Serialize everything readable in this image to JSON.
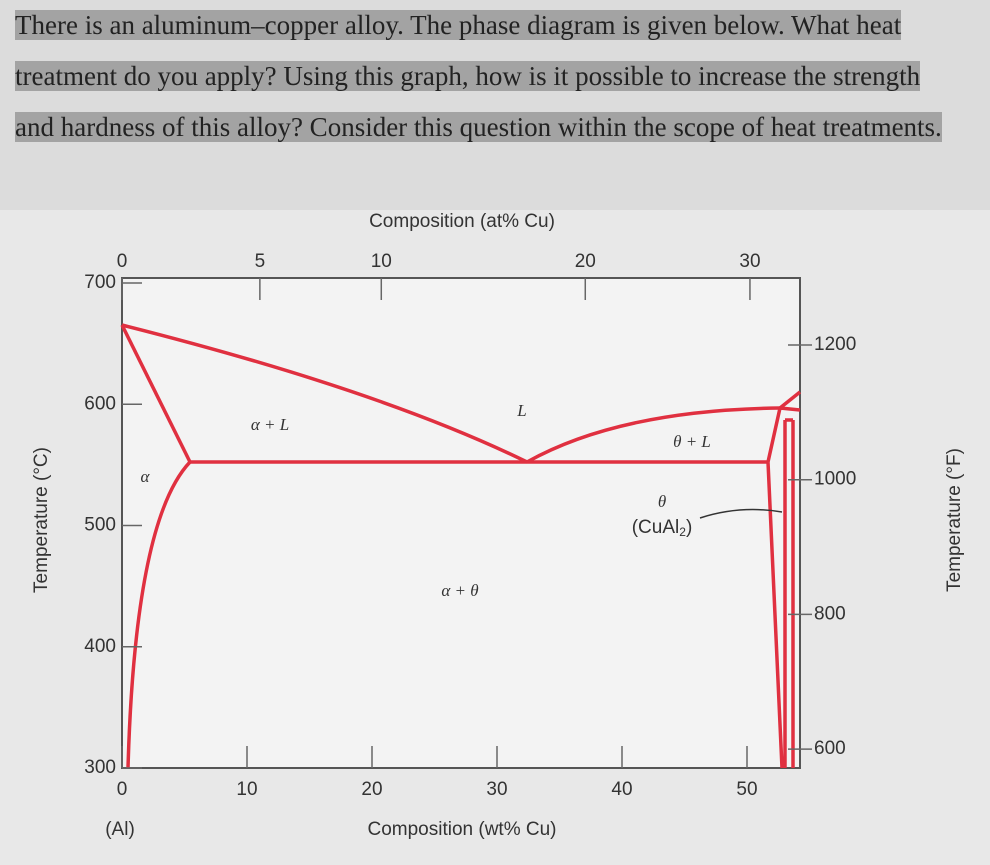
{
  "question": "There is an aluminum–copper alloy. The phase diagram is given below. What heat treatment do you apply? Using this graph, how is it possible to increase the strength and hardness of this alloy? Consider this question within the scope of heat treatments.",
  "diagram": {
    "top_axis": {
      "title": "Composition (at% Cu)",
      "ticks": [
        0,
        5,
        10,
        20,
        30
      ]
    },
    "bottom_axis": {
      "title": "Composition (wt% Cu)",
      "ticks": [
        0,
        10,
        20,
        30,
        40,
        50
      ],
      "end_label": "(Al)"
    },
    "left_axis": {
      "title": "Temperature (°C)",
      "ticks": [
        300,
        400,
        500,
        600,
        700
      ]
    },
    "right_axis": {
      "title": "Temperature (°F)",
      "ticks": [
        600,
        800,
        1000,
        1200
      ]
    },
    "regions": {
      "alpha_liquid": "α + L",
      "liquid": "L",
      "theta_liquid": "θ + L",
      "alpha": "α",
      "theta": "θ",
      "alpha_theta": "α + θ"
    },
    "compound": [
      "(CuAl",
      "2",
      ")"
    ]
  }
}
